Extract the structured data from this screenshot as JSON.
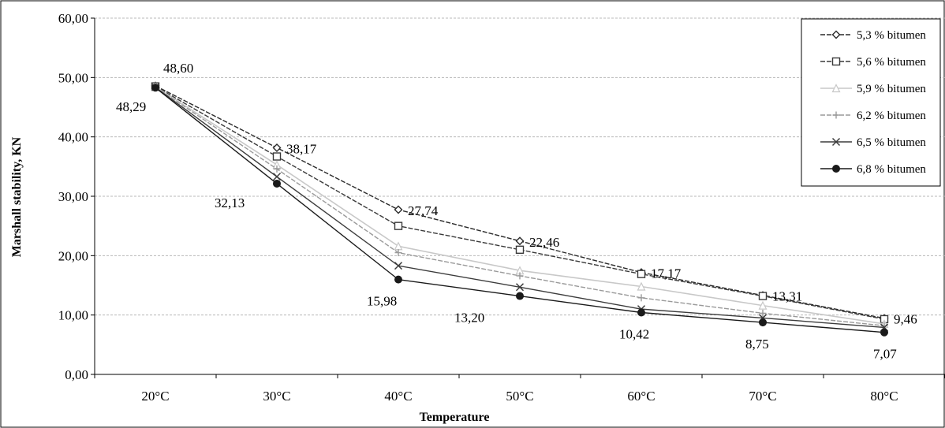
{
  "chart_data": {
    "type": "line",
    "title": "",
    "xlabel": "Temperature",
    "ylabel": "Marshall stability, KN",
    "categories": [
      "20°C",
      "30°C",
      "40°C",
      "50°C",
      "60°C",
      "70°C",
      "80°C"
    ],
    "ylim": [
      0,
      60
    ],
    "yticks": [
      "0,00",
      "10,00",
      "20,00",
      "30,00",
      "40,00",
      "50,00",
      "60,00"
    ],
    "grid": true,
    "legend_position": "top-right",
    "series": [
      {
        "name": "5,3 % bitumen",
        "color": "#2a2a2a",
        "marker": "diamond",
        "values": [
          48.6,
          38.17,
          27.74,
          22.46,
          17.17,
          13.31,
          9.46
        ]
      },
      {
        "name": "5,6 % bitumen",
        "color": "#3a3a3a",
        "marker": "square",
        "values": [
          48.5,
          36.7,
          25.0,
          21.0,
          16.9,
          13.2,
          9.3
        ]
      },
      {
        "name": "5,9 % bitumen",
        "color": "#c8c8c8",
        "marker": "triangle",
        "values": [
          48.45,
          35.3,
          21.6,
          17.5,
          14.8,
          11.6,
          8.5
        ]
      },
      {
        "name": "6,2 % bitumen",
        "color": "#9a9a9a",
        "marker": "plus",
        "values": [
          48.4,
          34.6,
          20.5,
          16.6,
          12.9,
          10.3,
          8.2
        ]
      },
      {
        "name": "6,5 % bitumen",
        "color": "#3c3c3c",
        "marker": "x",
        "values": [
          48.35,
          33.3,
          18.3,
          14.7,
          11.0,
          9.5,
          7.9
        ]
      },
      {
        "name": "6,8 % bitumen",
        "color": "#1a1a1a",
        "marker": "circle",
        "values": [
          48.29,
          32.13,
          15.98,
          13.2,
          10.42,
          8.75,
          7.07
        ]
      }
    ],
    "annotations": [
      {
        "category": "20°C",
        "value": 48.6,
        "text": "48,60"
      },
      {
        "category": "20°C",
        "value": 48.29,
        "text": "48,29"
      },
      {
        "category": "30°C",
        "value": 38.17,
        "text": "38,17"
      },
      {
        "category": "30°C",
        "value": 32.13,
        "text": "32,13"
      },
      {
        "category": "40°C",
        "value": 27.74,
        "text": "27,74"
      },
      {
        "category": "40°C",
        "value": 15.98,
        "text": "15,98"
      },
      {
        "category": "50°C",
        "value": 22.46,
        "text": "22,46"
      },
      {
        "category": "50°C",
        "value": 13.2,
        "text": "13,20"
      },
      {
        "category": "60°C",
        "value": 17.17,
        "text": "17,17"
      },
      {
        "category": "60°C",
        "value": 10.42,
        "text": "10,42"
      },
      {
        "category": "70°C",
        "value": 13.31,
        "text": "13,31"
      },
      {
        "category": "70°C",
        "value": 8.75,
        "text": "8,75"
      },
      {
        "category": "80°C",
        "value": 9.46,
        "text": "9,46"
      },
      {
        "category": "80°C",
        "value": 7.07,
        "text": "7,07"
      }
    ]
  }
}
